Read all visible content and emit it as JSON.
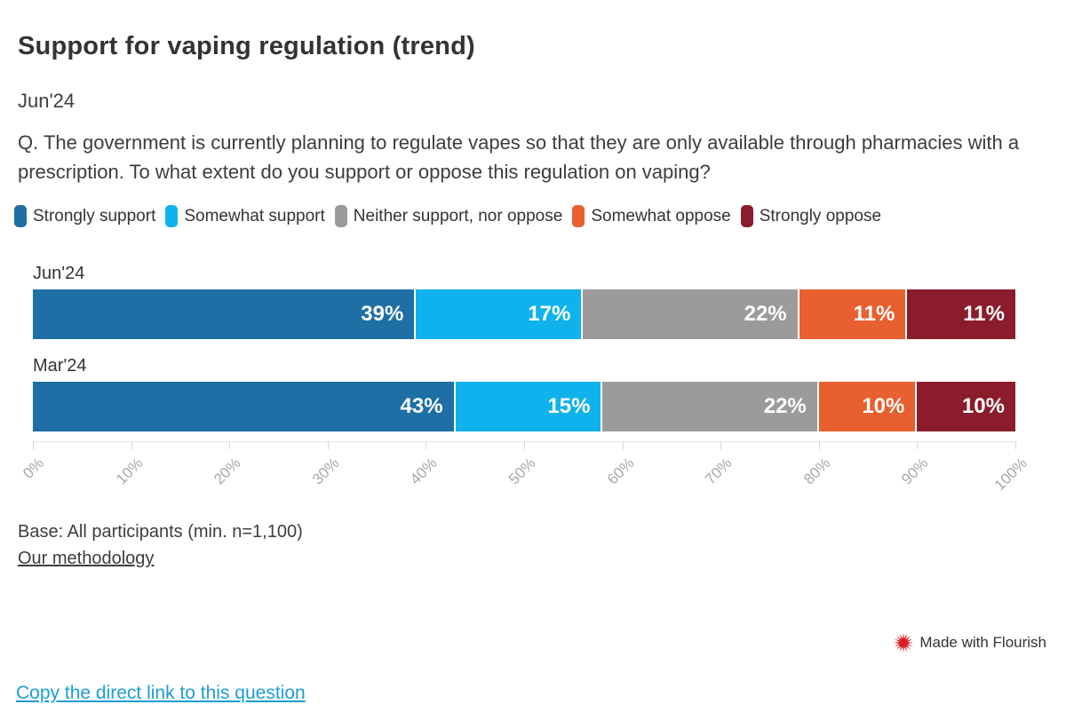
{
  "header": {
    "title": "Support for vaping regulation (trend)",
    "subtitle": "Jun'24",
    "question": "Q. The government is currently planning to regulate vapes so that they are only available through pharmacies with a prescription. To what extent do you support or oppose this regulation on vaping?"
  },
  "chart_data": {
    "type": "bar",
    "stacked": true,
    "orientation": "horizontal",
    "categories": [
      "Jun'24",
      "Mar'24"
    ],
    "series": [
      {
        "name": "Strongly support",
        "color": "#1d6fa5",
        "values": [
          39,
          43
        ]
      },
      {
        "name": "Somewhat support",
        "color": "#0fb2ec",
        "values": [
          17,
          15
        ]
      },
      {
        "name": "Neither support, nor oppose",
        "color": "#9b9b9b",
        "values": [
          22,
          22
        ]
      },
      {
        "name": "Somewhat oppose",
        "color": "#e8602f",
        "values": [
          11,
          10
        ]
      },
      {
        "name": "Strongly oppose",
        "color": "#8b1c2c",
        "values": [
          11,
          10
        ]
      }
    ],
    "value_suffix": "%",
    "xlim": [
      0,
      100
    ],
    "x_ticks": [
      "0%",
      "10%",
      "20%",
      "30%",
      "40%",
      "50%",
      "60%",
      "70%",
      "80%",
      "90%",
      "100%"
    ],
    "legend_position": "top",
    "grid": false
  },
  "footer": {
    "base_note": "Base: All participants (min. n=1,100)",
    "methodology_label": "Our methodology",
    "credit_label": "Made with Flourish",
    "copy_link_label": "Copy the direct link to this question"
  },
  "colors": {
    "link": "#1e9cd7",
    "credit_icon": "#dc1f26",
    "text": "#333333",
    "axis_label": "#a8a8a8"
  },
  "layout_values": {
    "row_label_tops": [
      297,
      401
    ],
    "bar_tops": [
      326,
      430
    ]
  }
}
